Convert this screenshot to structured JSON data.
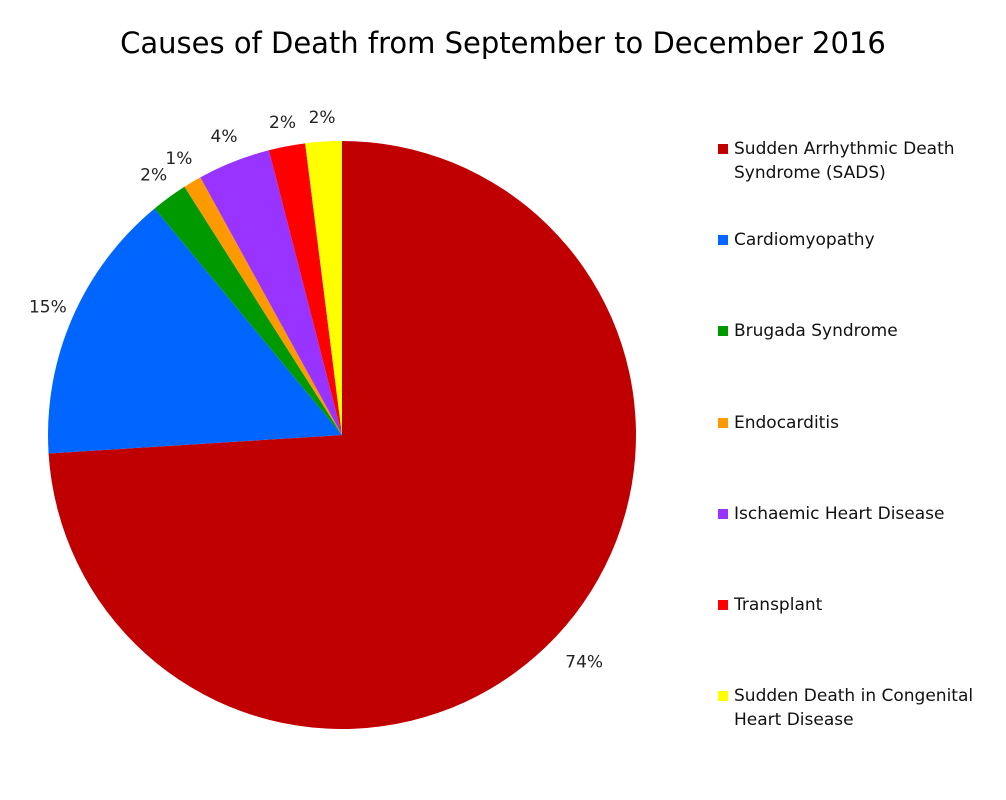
{
  "chart_data": {
    "type": "pie",
    "title": "Causes of Death from September to December 2016",
    "slices": [
      {
        "name": "Sudden Arrhythmic Death Syndrome (SADS)",
        "value": 74,
        "label": "74%",
        "color": "#C00000"
      },
      {
        "name": "Cardiomyopathy",
        "value": 15,
        "label": "15%",
        "color": "#0066FF"
      },
      {
        "name": "Brugada Syndrome",
        "value": 2,
        "label": "2%",
        "color": "#009900"
      },
      {
        "name": "Endocarditis",
        "value": 1,
        "label": "1%",
        "color": "#FF9900"
      },
      {
        "name": "Ischaemic Heart Disease",
        "value": 4,
        "label": "4%",
        "color": "#9933FF"
      },
      {
        "name": "Transplant",
        "value": 2,
        "label": "2%",
        "color": "#FF0000"
      },
      {
        "name": "Sudden Death in Congenital Heart Disease",
        "value": 2,
        "label": "2%",
        "color": "#FFFF00"
      }
    ],
    "legend": {
      "position": "right"
    }
  }
}
